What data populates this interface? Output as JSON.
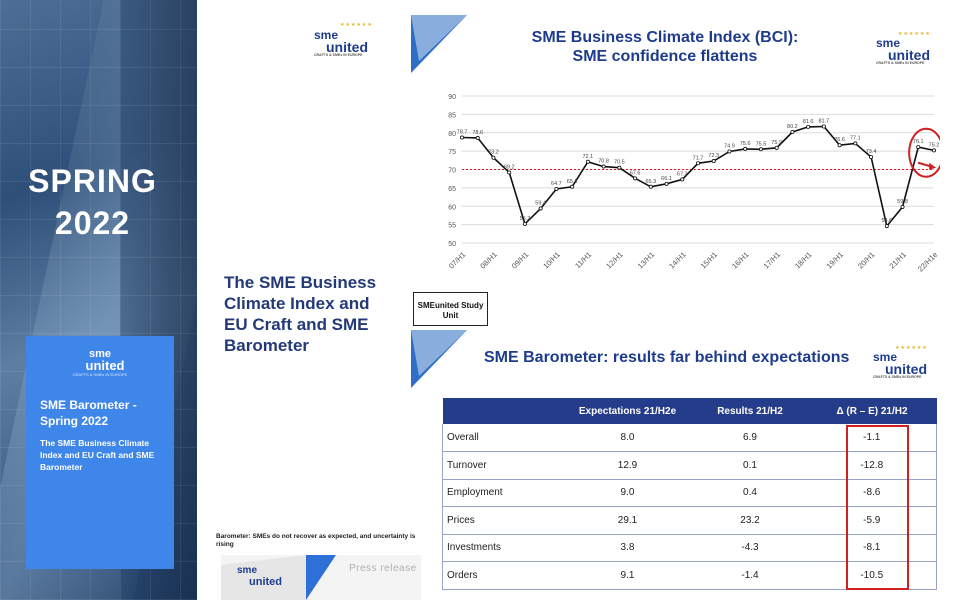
{
  "cover": {
    "title_line1": "SPRING",
    "title_line2": "2022",
    "card": {
      "logo_top": "sme",
      "logo_bottom": "united",
      "logo_tag": "CRAFTS & SMEs IN EUROPE",
      "title": "SME Barometer - Spring 2022",
      "subtitle": "The SME Business Climate Index and EU Craft and SME Barometer"
    }
  },
  "middle": {
    "title": "The SME Business Climate Index and EU Craft and SME Barometer",
    "barometer_note": "Barometer: SMEs do not recover as expected, and uncertainty is rising",
    "press_release": "Press release",
    "press_logo_top": "sme",
    "press_logo_bottom": "united",
    "study_unit": "SMEunited Study Unit"
  },
  "logos": {
    "top": "sme",
    "bottom": "united",
    "tag": "CRAFTS & SMEs IN EUROPE",
    "stars": "★★★★★★"
  },
  "bci_chart": {
    "title_line1": "SME Business Climate Index (BCI):",
    "title_line2": "SME confidence flattens"
  },
  "chart_data": {
    "type": "line",
    "title": "SME Business Climate Index (BCI): SME confidence flattens",
    "xlabel": "",
    "ylabel": "",
    "ylim": [
      50,
      90
    ],
    "yticks": [
      50,
      55,
      60,
      65,
      70,
      75,
      80,
      85,
      90
    ],
    "grid": true,
    "reference_line": 70,
    "x_tick_labels": [
      "07/H1",
      "08/H1",
      "09/H1",
      "10/H1",
      "11/H1",
      "12/H1",
      "13/H1",
      "14/H1",
      "15/H1",
      "16/H1",
      "17/H1",
      "18/H1",
      "19/H1",
      "20/H1",
      "21/H1",
      "22/H1e"
    ],
    "x_positions": [
      0,
      2,
      4,
      6,
      8,
      10,
      12,
      14,
      16,
      18,
      20,
      22,
      24,
      26,
      28,
      30
    ],
    "points": [
      {
        "x": 0,
        "y": 78.7
      },
      {
        "x": 1,
        "y": 78.6
      },
      {
        "x": 2,
        "y": 73.2
      },
      {
        "x": 3,
        "y": 69.2
      },
      {
        "x": 4,
        "y": 55.2
      },
      {
        "x": 5,
        "y": 59.4
      },
      {
        "x": 6,
        "y": 64.7
      },
      {
        "x": 7,
        "y": 65.3
      },
      {
        "x": 8,
        "y": 72.1
      },
      {
        "x": 9,
        "y": 70.8
      },
      {
        "x": 10,
        "y": 70.5
      },
      {
        "x": 11,
        "y": 67.6
      },
      {
        "x": 12,
        "y": 65.3
      },
      {
        "x": 13,
        "y": 66.1
      },
      {
        "x": 14,
        "y": 67.3
      },
      {
        "x": 15,
        "y": 71.7
      },
      {
        "x": 16,
        "y": 72.3
      },
      {
        "x": 17,
        "y": 74.9
      },
      {
        "x": 18,
        "y": 75.6
      },
      {
        "x": 19,
        "y": 75.5
      },
      {
        "x": 20,
        "y": 75.9
      },
      {
        "x": 21,
        "y": 80.2
      },
      {
        "x": 22,
        "y": 81.6
      },
      {
        "x": 23,
        "y": 81.7
      },
      {
        "x": 24,
        "y": 76.6
      },
      {
        "x": 25,
        "y": 77.1
      },
      {
        "x": 26,
        "y": 73.4
      },
      {
        "x": 27,
        "y": 54.6
      },
      {
        "x": 28,
        "y": 59.8
      },
      {
        "x": 29,
        "y": 76.1
      },
      {
        "x": 30,
        "y": 75.2
      }
    ],
    "data_labels": [
      "78.7",
      "78.6",
      "73.2",
      "69.2",
      "55.2",
      "59.4",
      "64.7",
      "65.3",
      "72.1",
      "70.8",
      "70.5",
      "67.6",
      "65.3",
      "66.1",
      "67.3",
      "71.7",
      "72.3",
      "74.9",
      "75.6",
      "75.5",
      "75.9",
      "80.2",
      "81.6",
      "81.7",
      "76.6",
      "77.1",
      "73.4",
      "54.6",
      "59.8",
      "76.1",
      "75.2"
    ],
    "highlight": "last two points circled in red"
  },
  "barometer_table": {
    "title": "SME Barometer: results far behind expectations",
    "headers": [
      "",
      "Expectations 21/H2e",
      "Results 21/H2",
      "Δ (R – E) 21/H2"
    ],
    "rows": [
      {
        "label": "Overall",
        "expectations": "8.0",
        "results": "6.9",
        "delta": "-1.1"
      },
      {
        "label": "Turnover",
        "expectations": "12.9",
        "results": "0.1",
        "delta": "-12.8"
      },
      {
        "label": "Employment",
        "expectations": "9.0",
        "results": "0.4",
        "delta": "-8.6"
      },
      {
        "label": "Prices",
        "expectations": "29.1",
        "results": "23.2",
        "delta": "-5.9"
      },
      {
        "label": "Investments",
        "expectations": "3.8",
        "results": "-4.3",
        "delta": "-8.1"
      },
      {
        "label": "Orders",
        "expectations": "9.1",
        "results": "-1.4",
        "delta": "-10.5"
      }
    ]
  },
  "colors": {
    "navy": "#253c8a",
    "brand_blue": "#1e3c8c",
    "highlight_red": "#d0201f",
    "card_blue": "#3f86ea"
  }
}
